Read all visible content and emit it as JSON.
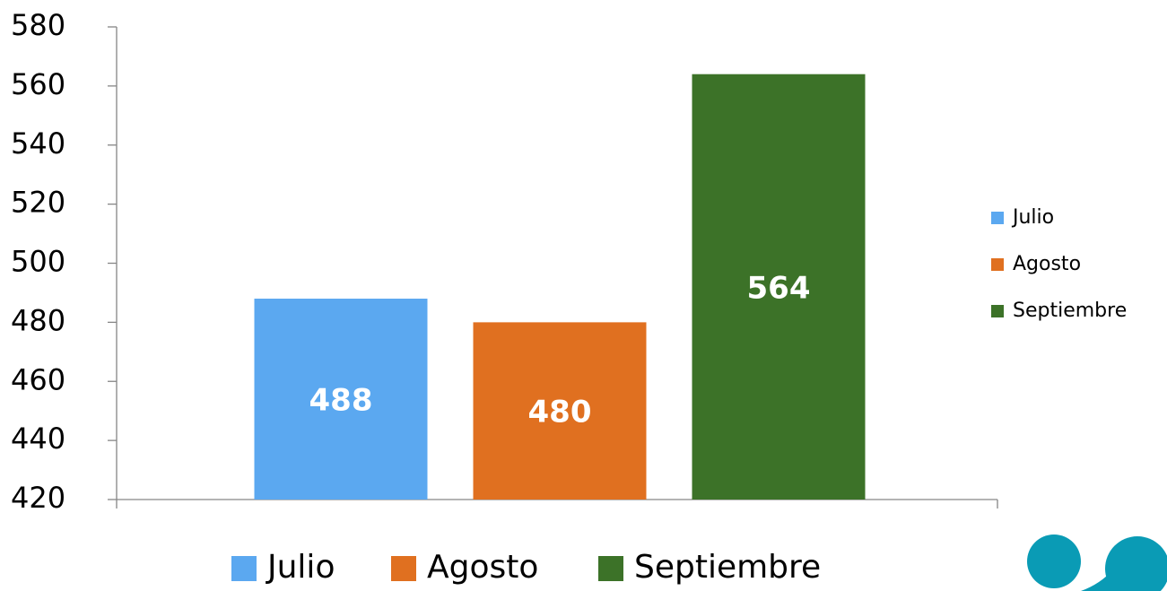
{
  "chart_data": {
    "type": "bar",
    "categories": [
      null
    ],
    "series": [
      {
        "name": "Julio",
        "color": "#5BA8F0",
        "values": [
          488
        ]
      },
      {
        "name": "Agosto",
        "color": "#E07020",
        "values": [
          480
        ]
      },
      {
        "name": "Septiembre",
        "color": "#3C7228",
        "values": [
          564
        ]
      }
    ],
    "ylim": [
      420,
      580
    ],
    "yticks": [
      420,
      440,
      460,
      480,
      500,
      520,
      540,
      560,
      580
    ],
    "grid": false,
    "legend": "right"
  }
}
